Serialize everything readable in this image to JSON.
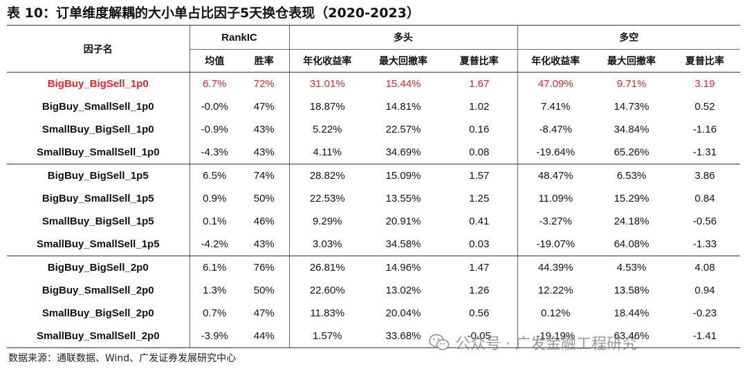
{
  "title": "表 10：订单维度解耦的大小单占比因子5天换仓表现（2020-2023）",
  "header": {
    "factor_label": "因子名",
    "groups": [
      "RankIC",
      "多头",
      "多空"
    ],
    "subheaders": [
      "均值",
      "胜率",
      "年化收益率",
      "最大回撤率",
      "夏普比率",
      "年化收益率",
      "最大回撤率",
      "夏普比率"
    ]
  },
  "rows": [
    {
      "name": "BigBuy_BigSell_1p0",
      "values": [
        "6.7%",
        "72%",
        "31.01%",
        "15.44%",
        "1.67",
        "47.09%",
        "9.71%",
        "3.19"
      ],
      "highlight": true
    },
    {
      "name": "BigBuy_SmallSell_1p0",
      "values": [
        "-0.0%",
        "47%",
        "18.87%",
        "14.81%",
        "1.02",
        "7.41%",
        "14.73%",
        "0.52"
      ]
    },
    {
      "name": "SmallBuy_BigSell_1p0",
      "values": [
        "-0.9%",
        "43%",
        "5.22%",
        "22.57%",
        "0.16",
        "-8.47%",
        "34.84%",
        "-1.16"
      ]
    },
    {
      "name": "SmallBuy_SmallSell_1p0",
      "values": [
        "-4.3%",
        "43%",
        "4.11%",
        "34.69%",
        "0.08",
        "-19.64%",
        "65.26%",
        "-1.31"
      ]
    },
    {
      "name": "BigBuy_BigSell_1p5",
      "values": [
        "6.5%",
        "74%",
        "28.82%",
        "15.09%",
        "1.57",
        "48.47%",
        "6.53%",
        "3.86"
      ]
    },
    {
      "name": "BigBuy_SmallSell_1p5",
      "values": [
        "0.9%",
        "50%",
        "22.53%",
        "13.55%",
        "1.25",
        "11.09%",
        "15.29%",
        "0.84"
      ]
    },
    {
      "name": "SmallBuy_BigSell_1p5",
      "values": [
        "0.1%",
        "46%",
        "9.29%",
        "20.91%",
        "0.41",
        "-3.27%",
        "24.18%",
        "-0.56"
      ]
    },
    {
      "name": "SmallBuy_SmallSell_1p5",
      "values": [
        "-4.2%",
        "43%",
        "3.03%",
        "34.58%",
        "0.03",
        "-19.07%",
        "64.08%",
        "-1.33"
      ]
    },
    {
      "name": "BigBuy_BigSell_2p0",
      "values": [
        "6.1%",
        "76%",
        "26.81%",
        "14.96%",
        "1.47",
        "44.39%",
        "4.53%",
        "4.08"
      ]
    },
    {
      "name": "BigBuy_SmallSell_2p0",
      "values": [
        "1.3%",
        "50%",
        "22.60%",
        "13.02%",
        "1.26",
        "12.22%",
        "13.58%",
        "0.94"
      ]
    },
    {
      "name": "SmallBuy_BigSell_2p0",
      "values": [
        "0.7%",
        "47%",
        "11.83%",
        "20.04%",
        "0.56",
        "0.12%",
        "18.44%",
        "-0.23"
      ]
    },
    {
      "name": "SmallBuy_SmallSell_2p0",
      "values": [
        "-3.9%",
        "44%",
        "1.57%",
        "33.68%",
        "-0.05",
        "-19.19%",
        "63.46%",
        "-1.41"
      ]
    }
  ],
  "source": "数据来源：通联数据、Wind、广发证券发展研究中心",
  "watermark": {
    "text": "公众号 · 广发金融工程研究",
    "icon": "wechat-icon"
  },
  "colors": {
    "highlight": "#e8262a",
    "rule": "#333333"
  }
}
